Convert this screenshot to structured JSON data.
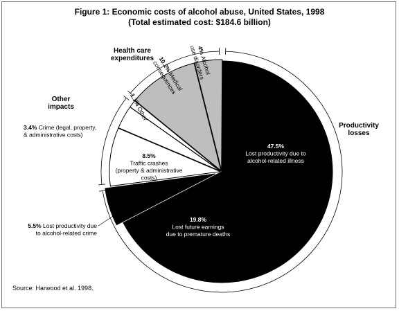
{
  "title": "Figure 1:  Economic costs of alcohol abuse, United States, 1998",
  "subtitle": "(Total estimated cost:  $184.6 billion)",
  "source": "Source:  Harwood et al. 1998.",
  "colors": {
    "dark": "#000000",
    "gray": "#bebebe",
    "white": "#ffffff",
    "outline": "#000000"
  },
  "chart_data": {
    "type": "pie",
    "title": "Figure 1:  Economic costs of alcohol abuse, United States, 1998",
    "subtitle": "(Total estimated cost:  $184.6 billion)",
    "groups": [
      {
        "label": "Productivity losses",
        "lines": [
          "Productivity",
          "losses"
        ]
      },
      {
        "label": "Health care expenditures",
        "lines": [
          "Health care",
          "expenditures"
        ]
      },
      {
        "label": "Other impacts",
        "lines": [
          "Other",
          "impacts"
        ]
      }
    ],
    "slices": [
      {
        "value": 47.5,
        "pct": "47.5%",
        "group": 0,
        "fill": "dark",
        "lines": [
          "Lost productivity due to",
          "alcohol-related illness"
        ]
      },
      {
        "value": 19.8,
        "pct": "19.8%",
        "group": 0,
        "fill": "dark",
        "lines": [
          "Lost future earnings",
          "due to premature deaths"
        ]
      },
      {
        "value": 5.5,
        "pct": "5.5%",
        "group": 0,
        "fill": "dark",
        "lines": [
          "Lost productivity due",
          "to alcohol-related crime"
        ]
      },
      {
        "value": 8.5,
        "pct": "8.5%",
        "group": 2,
        "fill": "white",
        "lines": [
          "Traffic crashes",
          "(property & administrative",
          "costs)"
        ]
      },
      {
        "value": 3.4,
        "pct": "3.4%",
        "group": 2,
        "fill": "white",
        "lines": [
          "Crime (legal, property,",
          "& administrative costs)"
        ]
      },
      {
        "value": 1.1,
        "pct": "1.1%",
        "group": 2,
        "fill": "white",
        "lines": [
          "Other"
        ]
      },
      {
        "value": 10.2,
        "pct": "10.2%",
        "group": 1,
        "fill": "gray",
        "lines": [
          "Medical",
          "consequences"
        ]
      },
      {
        "value": 4,
        "pct": "4%",
        "group": 1,
        "fill": "gray",
        "lines": [
          "Alcohol",
          "use disorders"
        ]
      }
    ]
  }
}
